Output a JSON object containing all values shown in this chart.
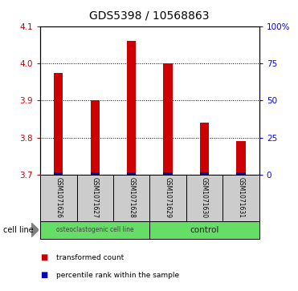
{
  "title": "GDS5398 / 10568863",
  "samples": [
    "GSM1071626",
    "GSM1071627",
    "GSM1071628",
    "GSM1071629",
    "GSM1071630",
    "GSM1071631"
  ],
  "red_values": [
    3.975,
    3.9,
    4.06,
    4.0,
    3.84,
    3.79
  ],
  "blue_values": [
    3.703,
    3.703,
    3.703,
    3.703,
    3.703,
    3.703
  ],
  "blue_heights": [
    0.007,
    0.007,
    0.007,
    0.007,
    0.007,
    0.007
  ],
  "ylim_left": [
    3.7,
    4.1
  ],
  "ylim_right": [
    0,
    100
  ],
  "yticks_left": [
    3.7,
    3.8,
    3.9,
    4.0,
    4.1
  ],
  "yticks_right": [
    0,
    25,
    50,
    75,
    100
  ],
  "ytick_labels_right": [
    "0",
    "25",
    "50",
    "75",
    "100%"
  ],
  "bar_base": 3.7,
  "red_color": "#cc0000",
  "blue_color": "#0000bb",
  "dotted_ticks": [
    3.8,
    3.9,
    4.0
  ],
  "group1_label": "osteoclastogenic cell line",
  "group2_label": "control",
  "group_color": "#66dd66",
  "sample_box_color": "#cccccc",
  "legend_red": "transformed count",
  "legend_blue": "percentile rank within the sample",
  "cell_line_label": "cell line",
  "title_fontsize": 10,
  "tick_fontsize": 7.5,
  "label_fontsize": 6,
  "bar_width": 0.25
}
